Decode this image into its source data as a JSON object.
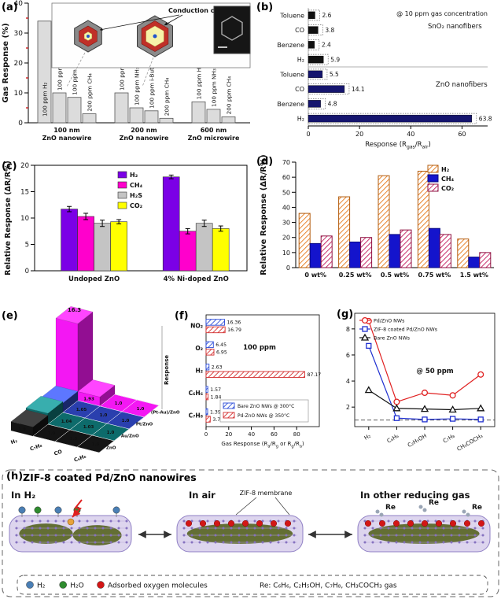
{
  "figure": {
    "labels": {
      "a": "(a)",
      "b": "(b)",
      "c": "(c)",
      "d": "(d)",
      "e": "(e)",
      "f": "(f)",
      "g": "(g)",
      "h": "(h)"
    }
  },
  "chart_data": [
    {
      "panel": "a",
      "type": "bar",
      "ylabel": "Gas Response (%)",
      "ylim": [
        0,
        40
      ],
      "yticks": [
        0,
        10,
        20,
        30,
        40
      ],
      "inset": {
        "annotation": "Conduction channel",
        "tem_scale": "2μm"
      },
      "bar_color": "#dcdcdc",
      "groups": [
        {
          "name": [
            "100 nm",
            "ZnO nanowire"
          ],
          "bars": [
            {
              "label": "100 ppm H₂",
              "value": 34,
              "label_inside": true
            },
            {
              "label": "100 ppm NH₃",
              "value": 10
            },
            {
              "label": "100 ppm i-Butane",
              "value": 8.5
            },
            {
              "label": "200 ppm CH₄",
              "value": 3
            }
          ]
        },
        {
          "name": [
            "200 nm",
            "ZnO nanowire"
          ],
          "bars": [
            {
              "label": "100 ppm H₂",
              "value": 10
            },
            {
              "label": "100 ppm NH₃",
              "value": 5
            },
            {
              "label": "100 ppm i-Butane",
              "value": 4
            },
            {
              "label": "200 ppm CH₄",
              "value": 1.5
            }
          ]
        },
        {
          "name": [
            "600 nm",
            "ZnO microwire"
          ],
          "bars": [
            {
              "label": "100 ppm H₂",
              "value": 7
            },
            {
              "label": "100 ppm NH₃",
              "value": 4.5
            },
            {
              "label": "200 ppm CH₄",
              "value": 2
            }
          ]
        }
      ]
    },
    {
      "panel": "b",
      "type": "bar",
      "orientation": "horizontal",
      "annotation": "@ 10 ppm gas concentration",
      "xlabel_parts": [
        {
          "t": "Response (R"
        },
        {
          "t": "gas",
          "sub": true
        },
        {
          "t": "/R"
        },
        {
          "t": "air",
          "sub": true
        },
        {
          "t": ")"
        }
      ],
      "xlim": [
        0,
        70
      ],
      "xticks": [
        0,
        20,
        40,
        60
      ],
      "groups": [
        {
          "name": "SnO₂ nanofibers",
          "color": "#111111",
          "label_color": "#111111",
          "bars": [
            {
              "label": "Toluene",
              "value": 2.6
            },
            {
              "label": "CO",
              "value": 3.8
            },
            {
              "label": "Benzene",
              "value": 2.4
            },
            {
              "label": "H₂",
              "value": 5.9
            }
          ]
        },
        {
          "name": "ZnO nanofibers",
          "color": "#15156e",
          "label_color": "#1919a8",
          "bars": [
            {
              "label": "Toluene",
              "value": 5.5
            },
            {
              "label": "CO",
              "value": 14.1
            },
            {
              "label": "Benzene",
              "value": 4.8
            },
            {
              "label": "H₂",
              "value": 63.8
            }
          ]
        }
      ]
    },
    {
      "panel": "c",
      "type": "bar",
      "ylabel": "Relative Response (ΔR/R%)",
      "ylim": [
        0,
        20
      ],
      "yticks": [
        0,
        5,
        10,
        15,
        20
      ],
      "categories": [
        "Undoped ZnO",
        "4% Ni-doped ZnO"
      ],
      "series": [
        {
          "name": "H₂",
          "color": "#7b00e6",
          "values": [
            11.7,
            17.8
          ],
          "errors": [
            0.5,
            0.35
          ]
        },
        {
          "name": "CH₄",
          "color": "#ff00cc",
          "values": [
            10.3,
            7.5
          ],
          "errors": [
            0.6,
            0.5
          ]
        },
        {
          "name": "H₂S",
          "color": "#c4c4c4",
          "values": [
            9.0,
            9.0
          ],
          "errors": [
            0.6,
            0.6
          ]
        },
        {
          "name": "CO₂",
          "color": "#ffff00",
          "values": [
            9.3,
            8.0
          ],
          "errors": [
            0.4,
            0.5
          ]
        }
      ]
    },
    {
      "panel": "d",
      "type": "bar",
      "ylabel": "Relative Response (ΔR/R%)",
      "ylim": [
        0,
        70
      ],
      "yticks": [
        0,
        10,
        20,
        30,
        40,
        50,
        60,
        70
      ],
      "categories": [
        "0 wt%",
        "0.25 wt%",
        "0.5 wt%",
        "0.75 wt%",
        "1.5 wt%"
      ],
      "series": [
        {
          "name": "H₂",
          "color": "#e67817",
          "hatch": true,
          "values": [
            36,
            47,
            61,
            64,
            19
          ]
        },
        {
          "name": "CH₄",
          "color": "#1414cc",
          "hatch": false,
          "values": [
            16,
            17,
            22,
            26,
            7
          ]
        },
        {
          "name": "CO₂",
          "color": "#c2185b",
          "hatch": true,
          "values": [
            21,
            20,
            25,
            22,
            10
          ]
        }
      ]
    },
    {
      "panel": "e",
      "type": "bar3d",
      "zlabel": "Response",
      "gases": [
        "H₂",
        "C₇H₈",
        "CO",
        "C₆H₆"
      ],
      "materials": [
        "ZnO",
        "Au/ZnO",
        "Pt/ZnO",
        "(Pt-Au)/ZnO"
      ],
      "colors": [
        "#141414",
        "#0d6b6b",
        "#2a3fae",
        "#f317f3"
      ],
      "values": [
        [
          1.9,
          1.0,
          1.0,
          1.0
        ],
        [
          2.3,
          1.04,
          1.03,
          1.0
        ],
        [
          1.98,
          1.05,
          1.0,
          1.0
        ],
        [
          16.3,
          1.93,
          1.0,
          1.0
        ]
      ],
      "value_labels": [
        [
          "1.9",
          "1.0",
          "1.0",
          "1.0"
        ],
        [
          "2.30",
          "1.04",
          "1.03",
          "1.0"
        ],
        [
          "1.98",
          "1.05",
          "1.0",
          "1.0"
        ],
        [
          "16.3",
          "1.93",
          "1.0",
          "1.0"
        ]
      ]
    },
    {
      "panel": "f",
      "type": "bar",
      "orientation": "horizontal",
      "annotation": "100 ppm",
      "xlabel_parts": [
        {
          "t": "Gas Response (R"
        },
        {
          "t": "a",
          "sub": true
        },
        {
          "t": "/R"
        },
        {
          "t": "g",
          "sub": true
        },
        {
          "t": " or R"
        },
        {
          "t": "g",
          "sub": true
        },
        {
          "t": "/R"
        },
        {
          "t": "a",
          "sub": true
        },
        {
          "t": ")"
        }
      ],
      "xlim": [
        0,
        100
      ],
      "xticks": [
        0,
        20,
        40,
        60,
        80
      ],
      "categories": [
        "NO₂",
        "O₂",
        "H₂",
        "C₆H₆",
        "C₇H₈"
      ],
      "series": [
        {
          "name": "Bare ZnO NWs @ 300°C",
          "color": "#2b4bd7",
          "values": [
            16.36,
            6.45,
            2.63,
            1.57,
            1.39
          ]
        },
        {
          "name": "Pd-ZnO NWs @ 350°C",
          "color": "#d32f2f",
          "values": [
            16.79,
            6.95,
            87.17,
            1.84,
            3.71
          ]
        }
      ]
    },
    {
      "panel": "g",
      "type": "line",
      "annotation": "@ 50 ppm",
      "categories": [
        "H₂",
        "C₆H₆",
        "C₂H₅OH",
        "C₇H₈",
        "CH₃COCH₃"
      ],
      "ylim": [
        0.5,
        9.2
      ],
      "yticks": [
        2,
        4,
        6,
        8
      ],
      "baseline": 1,
      "series": [
        {
          "name": "Pd/ZnO NWs",
          "color": "#e02020",
          "marker": "circle",
          "values": [
            8.6,
            2.4,
            3.1,
            2.9,
            4.5
          ]
        },
        {
          "name": "ZIF-8 coated Pd/ZnO NWs",
          "color": "#2030d0",
          "marker": "square",
          "values": [
            6.7,
            1.15,
            1.05,
            1.1,
            1.05
          ]
        },
        {
          "name": "Bare ZnO NWs",
          "color": "#101010",
          "marker": "triangle",
          "values": [
            3.3,
            1.9,
            1.85,
            1.8,
            1.9
          ]
        }
      ]
    }
  ],
  "panel_h": {
    "title": "ZIF-8 coated Pd/ZnO nanowires",
    "states": [
      {
        "label": "In H₂"
      },
      {
        "label": "In air",
        "annotation": "ZIF-8 membrane"
      },
      {
        "label": "In other reducing gas",
        "re": "Re"
      }
    ],
    "legend": [
      {
        "color": "#4a7fb5",
        "label": "H₂"
      },
      {
        "color": "#2e8b2e",
        "label": "H₂O"
      },
      {
        "color": "#d31616",
        "label": "Adsorbed oxygen molecules"
      }
    ],
    "re_text": "Re:  C₆H₆, C₂H₅OH, C₇H₈, CH₃COCH₃ gas"
  }
}
